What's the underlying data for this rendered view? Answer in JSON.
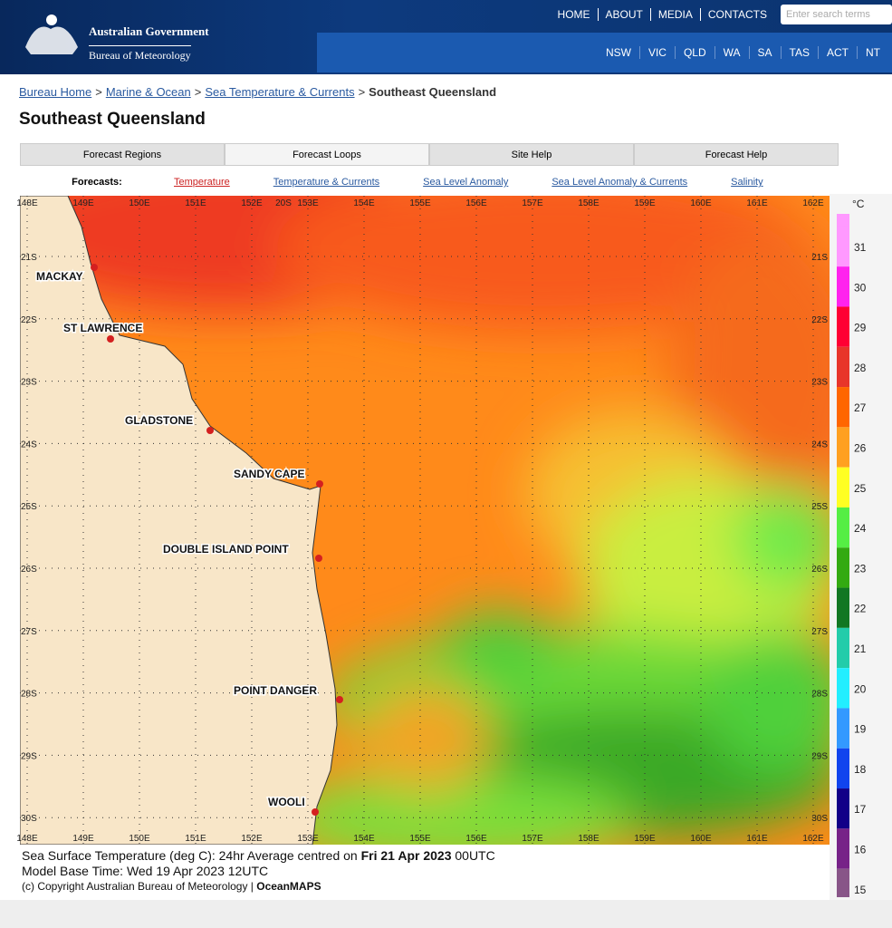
{
  "header": {
    "gov": "Australian Government",
    "bureau": "Bureau of Meteorology",
    "nav": [
      "HOME",
      "ABOUT",
      "MEDIA",
      "CONTACTS"
    ],
    "search_placeholder": "Enter search terms",
    "states": [
      "NSW",
      "VIC",
      "QLD",
      "WA",
      "SA",
      "TAS",
      "ACT",
      "NT"
    ]
  },
  "breadcrumb": {
    "links": [
      "Bureau Home",
      "Marine & Ocean",
      "Sea Temperature & Currents"
    ],
    "current": "Southeast Queensland",
    "separator": ">"
  },
  "page_title": "Southeast Queensland",
  "tabs": [
    "Forecast Regions",
    "Forecast Loops",
    "Site Help",
    "Forecast Help"
  ],
  "forecasts": {
    "label": "Forecasts:",
    "links": [
      "Temperature",
      "Temperature & Currents",
      "Sea Level Anomaly",
      "Sea Level Anomaly & Currents",
      "Salinity"
    ]
  },
  "map": {
    "lon_labels": [
      "148E",
      "149E",
      "150E",
      "151E",
      "152E",
      "153E",
      "154E",
      "155E",
      "156E",
      "157E",
      "158E",
      "159E",
      "160E",
      "161E",
      "162E"
    ],
    "lat_labels": [
      "21S",
      "22S",
      "23S",
      "24S",
      "25S",
      "26S",
      "27S",
      "28S",
      "29S",
      "30S"
    ],
    "top_label": "20S",
    "places": [
      "MACKAY",
      "ST LAWRENCE",
      "GLADSTONE",
      "SANDY CAPE",
      "DOUBLE ISLAND POINT",
      "POINT DANGER",
      "WOOLI"
    ],
    "colorbar": {
      "unit": "°C",
      "labels": [
        31,
        30,
        29,
        28,
        27,
        26,
        25,
        24,
        23,
        22,
        21,
        20,
        19,
        18,
        17,
        16,
        15
      ],
      "colors": [
        "#ff99ff",
        "#ff22ee",
        "#ff0033",
        "#e8352a",
        "#ff6600",
        "#ffa020",
        "#ffff22",
        "#55ee44",
        "#33aa11",
        "#117722",
        "#22ccaa",
        "#22eeff",
        "#3399ff",
        "#1144ee",
        "#110088",
        "#772288",
        "#885588"
      ]
    }
  },
  "caption": {
    "line1": "Sea Surface Temperature (deg C): 24hr Average centred on ",
    "date": "Fri 21 Apr 2023",
    "time": " 00UTC",
    "line2": "Model Base Time: Wed 19 Apr 2023 12UTC",
    "line3": "(c) Copyright Australian Bureau of Meteorology | ",
    "brand": "OceanMAPS"
  }
}
